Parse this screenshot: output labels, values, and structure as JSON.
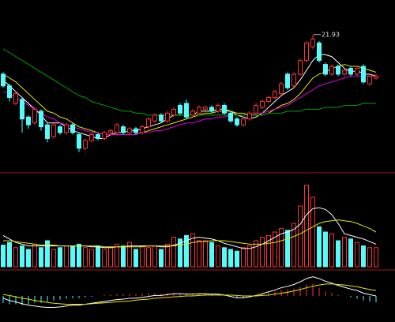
{
  "chart_data": [
    {
      "type": "candlestick",
      "ylim": [
        15,
        23.5
      ],
      "up_color": "#ff3232",
      "down_color": "#54fcfc",
      "open": [
        19.9,
        19.3,
        18.4,
        18.6,
        17.7,
        17.4,
        18.0,
        17.3,
        16.7,
        17.2,
        16.9,
        17.3,
        16.8,
        16.1,
        16.5,
        16.8,
        16.6,
        16.9,
        16.9,
        17.2,
        16.9,
        17.1,
        16.9,
        17.2,
        17.5,
        17.8,
        17.5,
        17.8,
        18.3,
        18.4,
        17.8,
        17.9,
        18.1,
        18.2,
        18.0,
        18.3,
        17.9,
        17.6,
        17.3,
        17.6,
        17.9,
        18.2,
        18.5,
        18.7,
        18.9,
        19.9,
        19.3,
        19.9,
        20.6,
        21.3,
        21.5,
        20.4,
        19.9,
        20.3,
        19.9,
        20.2,
        19.9,
        20.3,
        19.4,
        19.7
      ],
      "high": [
        20.0,
        19.4,
        19.0,
        18.7,
        17.8,
        18.2,
        18.1,
        17.4,
        17.4,
        17.3,
        17.4,
        17.4,
        16.9,
        16.6,
        16.9,
        16.9,
        17.0,
        17.1,
        17.4,
        17.3,
        17.2,
        17.2,
        17.3,
        17.7,
        17.9,
        17.9,
        18.0,
        18.2,
        18.4,
        18.6,
        18.1,
        18.3,
        18.3,
        18.3,
        18.4,
        18.4,
        18.0,
        17.7,
        17.7,
        18.0,
        18.4,
        18.6,
        18.8,
        19.1,
        19.5,
        20.0,
        20.0,
        20.7,
        21.6,
        21.93,
        21.6,
        20.5,
        20.4,
        20.4,
        20.2,
        20.3,
        20.3,
        20.4,
        19.9,
        19.9
      ],
      "low": [
        19.2,
        18.5,
        18.3,
        16.9,
        17.1,
        17.3,
        17.0,
        16.4,
        16.6,
        16.8,
        16.8,
        16.8,
        15.9,
        16.0,
        16.4,
        16.5,
        16.5,
        16.8,
        16.8,
        16.8,
        16.8,
        16.8,
        16.8,
        17.1,
        17.4,
        17.4,
        17.4,
        17.7,
        17.8,
        17.6,
        17.7,
        17.8,
        18.0,
        17.9,
        17.9,
        17.8,
        17.4,
        17.2,
        17.2,
        17.5,
        17.8,
        18.1,
        18.4,
        18.6,
        18.8,
        19.1,
        19.2,
        19.8,
        20.5,
        21.2,
        20.5,
        19.8,
        19.8,
        19.8,
        19.8,
        19.8,
        19.8,
        19.4,
        19.3,
        19.6
      ],
      "close": [
        19.3,
        18.7,
        18.9,
        17.6,
        17.3,
        18.1,
        17.2,
        16.6,
        17.3,
        16.9,
        17.3,
        16.9,
        16.1,
        16.5,
        16.8,
        16.6,
        16.9,
        17.0,
        17.3,
        16.9,
        17.1,
        16.9,
        17.2,
        17.6,
        17.8,
        17.5,
        17.9,
        18.1,
        17.9,
        17.7,
        18.0,
        18.2,
        18.2,
        18.0,
        18.3,
        17.9,
        17.5,
        17.3,
        17.6,
        17.9,
        18.3,
        18.5,
        18.7,
        19.0,
        19.4,
        19.2,
        19.9,
        20.6,
        21.5,
        21.7,
        20.6,
        19.9,
        20.3,
        19.9,
        20.1,
        19.9,
        20.2,
        19.5,
        19.8,
        19.8
      ],
      "series": [
        {
          "color": "#ffffff",
          "values": [
            19.6,
            19.3,
            19.0,
            18.7,
            18.4,
            18.1,
            17.8,
            17.4,
            17.4,
            17.4,
            17.2,
            17.0,
            16.9,
            16.8,
            16.7,
            16.6,
            16.6,
            16.8,
            16.9,
            16.9,
            17.0,
            17.0,
            17.1,
            17.2,
            17.3,
            17.4,
            17.6,
            17.8,
            17.8,
            17.8,
            17.8,
            18.0,
            18.0,
            18.0,
            18.1,
            18.1,
            18.0,
            17.8,
            17.7,
            17.6,
            17.7,
            17.9,
            18.2,
            18.5,
            18.8,
            19.0,
            19.2,
            19.6,
            20.1,
            20.6,
            20.9,
            20.9,
            20.8,
            20.5,
            20.2,
            20.0,
            20.1,
            19.9,
            19.9,
            19.8
          ]
        },
        {
          "color": "#e6e600",
          "values": [
            19.9,
            19.7,
            19.5,
            19.2,
            18.9,
            18.6,
            18.3,
            18.0,
            17.9,
            17.7,
            17.6,
            17.4,
            17.2,
            17.1,
            17.0,
            16.9,
            16.8,
            16.8,
            16.8,
            16.8,
            16.8,
            16.8,
            16.9,
            17.0,
            17.1,
            17.2,
            17.3,
            17.4,
            17.5,
            17.6,
            17.7,
            17.8,
            17.9,
            17.9,
            18.0,
            18.0,
            18.0,
            17.9,
            17.9,
            17.8,
            17.8,
            17.8,
            17.9,
            18.1,
            18.3,
            18.4,
            18.6,
            18.9,
            19.3,
            19.7,
            19.9,
            20.0,
            20.2,
            20.3,
            20.4,
            20.3,
            20.3,
            20.2,
            20.1,
            20.0
          ]
        },
        {
          "color": "#e000e0",
          "values": [
            19.0,
            18.9,
            18.7,
            18.5,
            18.3,
            18.1,
            17.9,
            17.7,
            17.6,
            17.4,
            17.3,
            17.2,
            17.1,
            17.0,
            16.9,
            16.9,
            16.8,
            16.8,
            16.8,
            16.8,
            16.8,
            16.8,
            16.9,
            16.9,
            17.0,
            17.0,
            17.1,
            17.2,
            17.3,
            17.4,
            17.4,
            17.5,
            17.6,
            17.6,
            17.7,
            17.7,
            17.8,
            17.8,
            17.8,
            17.8,
            17.9,
            17.9,
            18.0,
            18.1,
            18.2,
            18.3,
            18.5,
            18.7,
            18.9,
            19.1,
            19.3,
            19.4,
            19.5,
            19.6,
            19.7,
            19.8,
            19.8,
            19.8,
            19.8,
            19.8
          ]
        },
        {
          "color": "#00a000",
          "values": [
            21.2,
            21.0,
            20.8,
            20.6,
            20.4,
            20.2,
            20.0,
            19.8,
            19.6,
            19.4,
            19.2,
            19.0,
            18.8,
            18.7,
            18.5,
            18.4,
            18.3,
            18.2,
            18.1,
            18.0,
            18.0,
            17.9,
            17.9,
            17.8,
            17.8,
            17.8,
            17.8,
            17.8,
            17.8,
            17.8,
            17.8,
            17.8,
            17.8,
            17.8,
            17.8,
            17.8,
            17.8,
            17.8,
            17.8,
            17.8,
            17.8,
            17.8,
            17.9,
            17.9,
            17.9,
            18.0,
            18.0,
            18.0,
            18.1,
            18.1,
            18.1,
            18.2,
            18.2,
            18.2,
            18.3,
            18.3,
            18.3,
            18.4,
            18.4,
            18.4
          ]
        }
      ]
    },
    {
      "type": "volume",
      "ylim": [
        0,
        100
      ],
      "values": [
        25,
        28,
        22,
        24,
        20,
        26,
        22,
        30,
        20,
        22,
        24,
        24,
        26,
        22,
        20,
        24,
        20,
        22,
        26,
        24,
        28,
        20,
        24,
        22,
        24,
        20,
        26,
        34,
        32,
        36,
        38,
        30,
        30,
        28,
        24,
        22,
        20,
        18,
        22,
        24,
        30,
        34,
        36,
        40,
        44,
        42,
        50,
        70,
        94,
        80,
        46,
        40,
        38,
        30,
        34,
        32,
        28,
        24,
        22,
        22
      ],
      "series": [
        {
          "color": "#ffffff",
          "values": [
            36,
            32,
            28,
            26,
            24,
            24,
            24,
            24,
            24,
            24,
            24,
            24,
            24,
            24,
            23,
            23,
            22,
            22,
            23,
            23,
            24,
            24,
            24,
            24,
            24,
            23,
            23,
            25,
            27,
            30,
            33,
            34,
            33,
            32,
            30,
            27,
            25,
            23,
            21,
            21,
            23,
            26,
            30,
            34,
            38,
            40,
            43,
            49,
            60,
            67,
            68,
            66,
            60,
            50,
            38,
            36,
            34,
            32,
            29,
            26
          ]
        },
        {
          "color": "#e6e600",
          "values": [
            30,
            30,
            29,
            28,
            27,
            26,
            25,
            25,
            25,
            24,
            24,
            24,
            24,
            24,
            24,
            24,
            23,
            23,
            23,
            23,
            23,
            23,
            23,
            24,
            24,
            24,
            24,
            24,
            25,
            26,
            28,
            29,
            29,
            30,
            30,
            30,
            29,
            28,
            27,
            26,
            26,
            26,
            27,
            28,
            30,
            32,
            35,
            38,
            42,
            46,
            50,
            52,
            53,
            54,
            53,
            52,
            50,
            47,
            44,
            40
          ]
        }
      ]
    },
    {
      "type": "macd",
      "ylim": [
        -0.5,
        0.5
      ],
      "values": [
        -0.15,
        -0.18,
        -0.18,
        -0.2,
        -0.18,
        -0.15,
        -0.15,
        -0.12,
        -0.1,
        -0.08,
        -0.06,
        -0.05,
        -0.05,
        -0.03,
        -0.02,
        0.0,
        0.02,
        0.03,
        0.04,
        0.04,
        0.05,
        0.04,
        0.05,
        0.06,
        0.06,
        0.05,
        0.06,
        0.07,
        0.06,
        0.04,
        0.04,
        0.05,
        0.04,
        0.03,
        0.03,
        0.01,
        -0.02,
        -0.04,
        -0.03,
        -0.01,
        0.02,
        0.05,
        0.08,
        0.1,
        0.13,
        0.14,
        0.16,
        0.2,
        0.25,
        0.26,
        0.18,
        0.1,
        0.07,
        0.03,
        0.0,
        -0.03,
        -0.06,
        -0.1,
        -0.12,
        -0.14
      ],
      "series": [
        {
          "color": "#ffffff",
          "values": [
            -0.05,
            -0.1,
            -0.13,
            -0.17,
            -0.2,
            -0.22,
            -0.24,
            -0.25,
            -0.25,
            -0.24,
            -0.22,
            -0.2,
            -0.2,
            -0.18,
            -0.16,
            -0.14,
            -0.12,
            -0.1,
            -0.08,
            -0.07,
            -0.05,
            -0.05,
            -0.03,
            -0.01,
            0.01,
            0.01,
            0.03,
            0.05,
            0.05,
            0.04,
            0.04,
            0.05,
            0.05,
            0.04,
            0.04,
            0.02,
            -0.01,
            -0.04,
            -0.04,
            -0.02,
            0.01,
            0.05,
            0.09,
            0.13,
            0.18,
            0.21,
            0.25,
            0.31,
            0.38,
            0.42,
            0.38,
            0.32,
            0.28,
            0.23,
            0.19,
            0.15,
            0.12,
            0.06,
            0.03,
            0.0
          ]
        },
        {
          "color": "#e6e600",
          "values": [
            0.03,
            0.01,
            -0.02,
            -0.05,
            -0.07,
            -0.1,
            -0.12,
            -0.14,
            -0.16,
            -0.17,
            -0.18,
            -0.18,
            -0.18,
            -0.18,
            -0.17,
            -0.16,
            -0.15,
            -0.14,
            -0.13,
            -0.12,
            -0.11,
            -0.09,
            -0.08,
            -0.07,
            -0.05,
            -0.04,
            -0.03,
            -0.02,
            -0.01,
            0.0,
            0.0,
            0.01,
            0.02,
            0.02,
            0.02,
            0.02,
            0.02,
            0.01,
            0.0,
            0.0,
            0.0,
            0.01,
            0.02,
            0.04,
            0.06,
            0.08,
            0.11,
            0.14,
            0.18,
            0.21,
            0.24,
            0.26,
            0.26,
            0.25,
            0.24,
            0.22,
            0.2,
            0.17,
            0.14,
            0.12
          ]
        }
      ]
    }
  ]
}
